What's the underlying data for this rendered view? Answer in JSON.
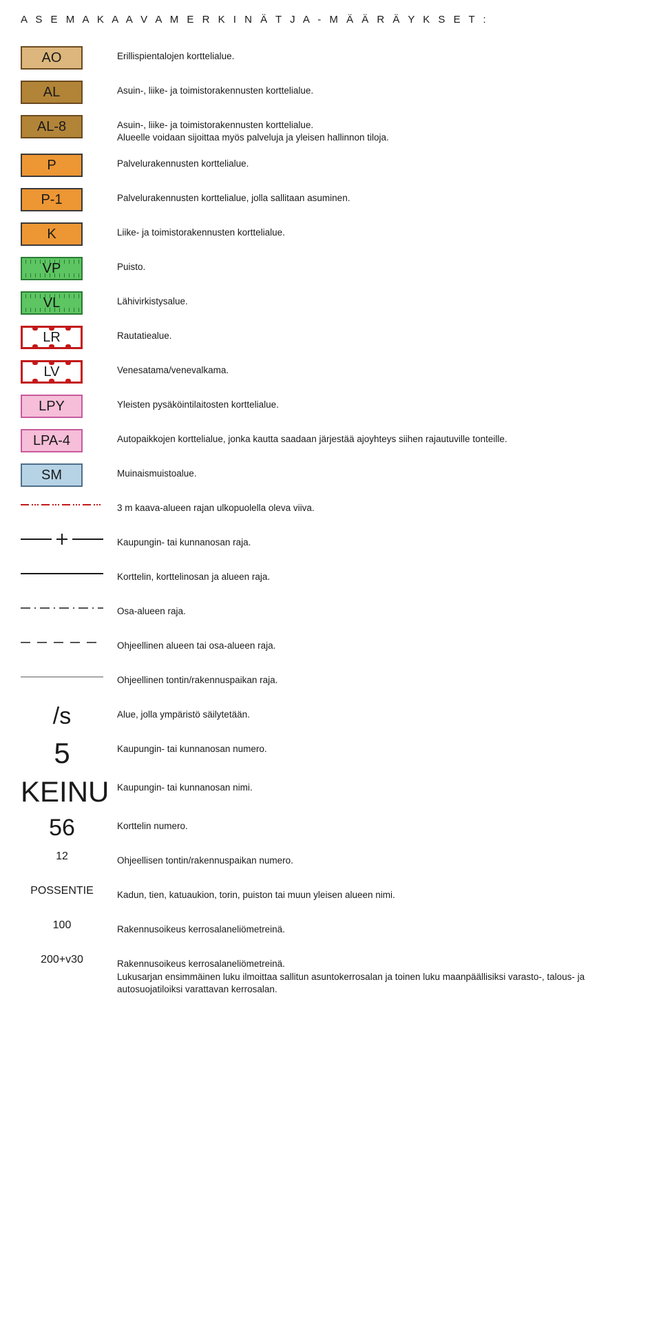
{
  "title": "A S E M A K A A V A M E R K I N Ä T J A - M Ä Ä R Ä Y K S E T :",
  "colors": {
    "tan": "#dcb67c",
    "brown": "#b28438",
    "orange": "#ec9634",
    "border_brown": "#6a4a1f",
    "border_dark": "#3a3a3a",
    "green_fill": "#5dc562",
    "green_border": "#2a7a33",
    "red": "#c31818",
    "pink": "#f6bed8",
    "pink_border": "#c75a9e",
    "lightblue": "#b6d3e6",
    "blue_border": "#4f6f8a",
    "white": "#ffffff",
    "dash_line": "#c31818"
  },
  "rows": [
    {
      "kind": "box",
      "label": "AO",
      "fill": "tan",
      "border": "border_brown",
      "desc": "Erillispientalojen korttelialue."
    },
    {
      "kind": "box",
      "label": "AL",
      "fill": "brown",
      "border": "border_brown",
      "desc": "Asuin-, liike- ja toimistorakennusten korttelialue."
    },
    {
      "kind": "box",
      "label": "AL-8",
      "fill": "brown",
      "border": "border_brown",
      "desc": "Asuin-, liike- ja toimistorakennusten korttelialue.\nAlueelle voidaan sijoittaa myös palveluja ja yleisen hallinnon tiloja."
    },
    {
      "kind": "box",
      "label": "P",
      "fill": "orange",
      "border": "border_dark",
      "desc": "Palvelurakennusten korttelialue."
    },
    {
      "kind": "box",
      "label": "P-1",
      "fill": "orange",
      "border": "border_dark",
      "desc": "Palvelurakennusten korttelialue, jolla sallitaan asuminen."
    },
    {
      "kind": "box",
      "label": "K",
      "fill": "orange",
      "border": "border_dark",
      "desc": "Liike- ja toimistorakennusten korttelialue."
    },
    {
      "kind": "green",
      "label": "VP",
      "desc": "Puisto."
    },
    {
      "kind": "green",
      "label": "VL",
      "desc": "Lähivirkistysalue."
    },
    {
      "kind": "rail",
      "label": "LR",
      "desc": "Rautatiealue."
    },
    {
      "kind": "rail",
      "label": "LV",
      "desc": "Venesatama/venevalkama."
    },
    {
      "kind": "box",
      "label": "LPY",
      "fill": "pink",
      "border": "pink_border",
      "desc": "Yleisten pysäköintilaitosten korttelialue."
    },
    {
      "kind": "box",
      "label": "LPA-4",
      "fill": "pink",
      "border": "pink_border",
      "desc": "Autopaikkojen korttelialue, jonka kautta saadaan järjestää ajoyhteys siihen rajautuville tonteille."
    },
    {
      "kind": "box",
      "label": "SM",
      "fill": "lightblue",
      "border": "blue_border",
      "desc": "Muinaismuistoalue."
    },
    {
      "kind": "line",
      "style": "red-dashdot",
      "desc": "3 m kaava-alueen rajan ulkopuolella oleva viiva."
    },
    {
      "kind": "line",
      "style": "plus",
      "desc": "Kaupungin- tai kunnanosan raja."
    },
    {
      "kind": "line",
      "style": "solid",
      "desc": "Korttelin, korttelinosan ja alueen raja."
    },
    {
      "kind": "line",
      "style": "dashdot",
      "desc": "Osa-alueen raja."
    },
    {
      "kind": "line",
      "style": "dashed",
      "desc": "Ohjeellinen alueen tai osa-alueen raja."
    },
    {
      "kind": "line",
      "style": "thin",
      "desc": "Ohjeellinen tontin/rakennuspaikan raja."
    },
    {
      "kind": "text",
      "label": "/s",
      "size": "med",
      "desc": "Alue, jolla ympäristö säilytetään."
    },
    {
      "kind": "text",
      "label": "5",
      "size": "big",
      "desc": "Kaupungin- tai kunnanosan numero."
    },
    {
      "kind": "text",
      "label": "KEINU",
      "size": "big",
      "desc": "Kaupungin- tai kunnanosan nimi."
    },
    {
      "kind": "text",
      "label": "56",
      "size": "med",
      "desc": "Korttelin numero."
    },
    {
      "kind": "text",
      "label": "12",
      "size": "small",
      "desc": "Ohjeellisen tontin/rakennuspaikan numero."
    },
    {
      "kind": "text",
      "label": "POSSENTIE",
      "size": "small",
      "desc": "Kadun, tien, katuaukion, torin, puiston tai muun yleisen alueen nimi."
    },
    {
      "kind": "text",
      "label": "100",
      "size": "small",
      "desc": "Rakennusoikeus kerrosalaneliömetreinä."
    },
    {
      "kind": "text",
      "label": "200+v30",
      "size": "small",
      "desc": "Rakennusoikeus kerrosalaneliömetreinä.\nLukusarjan ensimmäinen luku ilmoittaa sallitun asuntokerrosalan ja toinen luku maanpäällisiksi varasto-, talous- ja autosuojatiloiksi varattavan kerrosalan."
    }
  ],
  "line_styles": {
    "red-dashdot": {
      "color": "#c31818",
      "pattern": "12,4,2,2,2,2,2,4",
      "width": 2
    },
    "solid": {
      "color": "#1a1a1a",
      "pattern": "",
      "width": 2
    },
    "dashdot": {
      "color": "#1a1a1a",
      "pattern": "14,6,2,6",
      "width": 1.5
    },
    "dashed": {
      "color": "#1a1a1a",
      "pattern": "14,10",
      "width": 1.5
    },
    "thin": {
      "color": "#1a1a1a",
      "pattern": "",
      "width": 0.8
    }
  }
}
